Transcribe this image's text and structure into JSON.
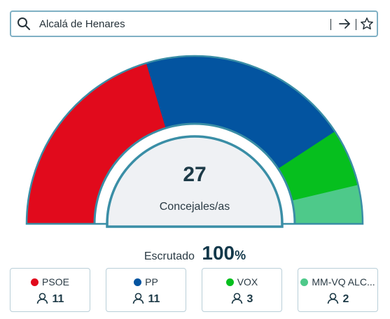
{
  "search": {
    "value": "Alcalá de Henares",
    "icons": [
      "search-icon",
      "arrow-right-icon",
      "star-icon"
    ]
  },
  "summary": {
    "total_seats": "27",
    "seats_label": "Concejales/as",
    "scrutiny_label": "Escrutado",
    "scrutiny_value": "100",
    "scrutiny_unit": "%"
  },
  "parties": [
    {
      "name": "PSOE",
      "seats": "11",
      "color": "#e10a1c"
    },
    {
      "name": "PP",
      "seats": "11",
      "color": "#0354a0"
    },
    {
      "name": "VOX",
      "seats": "3",
      "color": "#06bf1e"
    },
    {
      "name": "MM-VQ ALC...",
      "seats": "2",
      "color": "#4ec98a"
    }
  ],
  "colors": {
    "outline": "#3a8ea6",
    "center_fill": "#eff1f4"
  }
}
